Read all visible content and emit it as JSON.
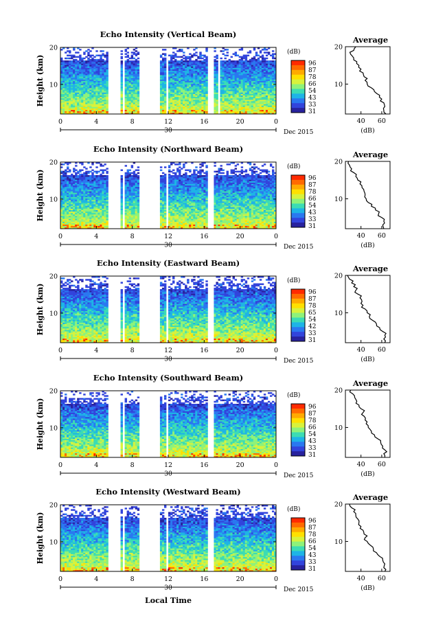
{
  "date_label": "Dec 2015",
  "xlabel": "Local Time",
  "ylabel": "Height (km)",
  "day_label": "30",
  "colorbar": {
    "unit": "(dB)",
    "tick_labels": [
      "96",
      "87",
      "78",
      "66",
      "54",
      "43",
      "33",
      "31"
    ],
    "colors": [
      "#ff2a00",
      "#ff6a00",
      "#ffaa00",
      "#ffe000",
      "#d8f23c",
      "#8ef27a",
      "#3cdcb4",
      "#1eb4e6",
      "#2a78f0",
      "#3244dc",
      "#28229e"
    ]
  },
  "profile": {
    "title": "Average",
    "xlabel": "(dB)"
  },
  "chart_data": [
    {
      "type": "heatmap",
      "title": "Echo Intensity (Vertical Beam)",
      "xlim": [
        0,
        24
      ],
      "ylim": [
        2,
        20
      ],
      "xticks": [
        "0",
        "4",
        "8",
        "12",
        "16",
        "20",
        "0"
      ],
      "yticks": [
        "20",
        "10"
      ],
      "cbar_ticks": [
        "96",
        "87",
        "78",
        "66",
        "54",
        "43",
        "33",
        "31"
      ],
      "data_gaps_hours": [
        [
          5.3,
          6.6
        ],
        [
          7.0,
          7.2
        ],
        [
          8.8,
          11.1
        ],
        [
          11.8,
          12.1
        ],
        [
          16.4,
          17.0
        ],
        [
          17.5,
          17.8
        ]
      ],
      "profile": {
        "xticks": [
          "40",
          "60"
        ],
        "yticks": [
          "20",
          "10"
        ],
        "height_km": [
          20,
          19,
          18,
          17,
          16,
          15,
          14,
          13,
          12,
          11,
          10,
          9,
          8,
          7,
          6,
          5,
          4,
          3,
          2
        ],
        "avg_db": [
          35,
          33,
          30,
          33,
          36,
          38,
          40,
          42,
          43,
          44,
          46,
          50,
          53,
          58,
          60,
          62,
          63,
          62,
          64
        ]
      }
    },
    {
      "type": "heatmap",
      "title": "Echo Intensity (Northward Beam)",
      "xlim": [
        0,
        24
      ],
      "ylim": [
        2,
        20
      ],
      "xticks": [
        "0",
        "4",
        "8",
        "12",
        "16",
        "20",
        "0"
      ],
      "yticks": [
        "20",
        "10"
      ],
      "cbar_ticks": [
        "96",
        "87",
        "78",
        "66",
        "54",
        "43",
        "33",
        "31"
      ],
      "data_gaps_hours": [
        [
          5.3,
          6.6
        ],
        [
          7.0,
          7.2
        ],
        [
          8.8,
          11.1
        ],
        [
          11.8,
          12.1
        ],
        [
          16.4,
          17.0
        ]
      ],
      "profile": {
        "xticks": [
          "40",
          "60"
        ],
        "yticks": [
          "20",
          "10"
        ],
        "height_km": [
          20,
          19,
          18,
          17,
          16,
          15,
          14,
          13,
          12,
          11,
          10,
          9,
          8,
          7,
          6,
          5,
          4,
          3,
          2
        ],
        "avg_db": [
          28,
          29,
          31,
          33,
          35,
          37,
          39,
          41,
          43,
          44,
          45,
          47,
          50,
          54,
          57,
          60,
          62,
          61,
          62
        ]
      }
    },
    {
      "type": "heatmap",
      "title": "Echo Intensity (Eastward Beam)",
      "xlim": [
        0,
        24
      ],
      "ylim": [
        2,
        20
      ],
      "xticks": [
        "0",
        "4",
        "8",
        "12",
        "16",
        "20",
        "0"
      ],
      "yticks": [
        "20",
        "10"
      ],
      "cbar_ticks": [
        "96",
        "87",
        "78",
        "65",
        "54",
        "42",
        "33",
        "31"
      ],
      "data_gaps_hours": [
        [
          5.3,
          6.6
        ],
        [
          7.0,
          7.2
        ],
        [
          8.8,
          11.1
        ],
        [
          11.8,
          12.1
        ],
        [
          16.4,
          17.0
        ]
      ],
      "profile": {
        "xticks": [
          "40",
          "60"
        ],
        "yticks": [
          "20",
          "10"
        ],
        "height_km": [
          20,
          19,
          18,
          17,
          16,
          15,
          14,
          13,
          12,
          11,
          10,
          9,
          8,
          7,
          6,
          5,
          4,
          3,
          2
        ],
        "avg_db": [
          27,
          29,
          31,
          33,
          35,
          37,
          39,
          41,
          42,
          44,
          46,
          48,
          51,
          55,
          58,
          61,
          63,
          62,
          63
        ]
      }
    },
    {
      "type": "heatmap",
      "title": "Echo Intensity (Southward Beam)",
      "xlim": [
        0,
        24
      ],
      "ylim": [
        2,
        20
      ],
      "xticks": [
        "0",
        "4",
        "8",
        "12",
        "16",
        "20",
        "0"
      ],
      "yticks": [
        "20",
        "10"
      ],
      "cbar_ticks": [
        "96",
        "87",
        "78",
        "66",
        "54",
        "43",
        "33",
        "31"
      ],
      "data_gaps_hours": [
        [
          5.3,
          6.6
        ],
        [
          7.0,
          7.2
        ],
        [
          8.8,
          11.1
        ],
        [
          11.8,
          12.1
        ],
        [
          16.4,
          17.0
        ]
      ],
      "profile": {
        "xticks": [
          "40",
          "60"
        ],
        "yticks": [
          "20",
          "10"
        ],
        "height_km": [
          20,
          19,
          18,
          17,
          16,
          15,
          14,
          13,
          12,
          11,
          10,
          9,
          8,
          7,
          6,
          5,
          4,
          3,
          2
        ],
        "avg_db": [
          30,
          32,
          34,
          36,
          38,
          40,
          42,
          43,
          44,
          45,
          47,
          50,
          53,
          56,
          59,
          61,
          63,
          62,
          63
        ]
      }
    },
    {
      "type": "heatmap",
      "title": "Echo Intensity (Westward Beam)",
      "xlim": [
        0,
        24
      ],
      "ylim": [
        2,
        20
      ],
      "xticks": [
        "0",
        "4",
        "8",
        "12",
        "16",
        "20",
        "0"
      ],
      "yticks": [
        "20",
        "10"
      ],
      "cbar_ticks": [
        "96",
        "87",
        "78",
        "66",
        "54",
        "43",
        "33",
        "31"
      ],
      "data_gaps_hours": [
        [
          5.3,
          6.6
        ],
        [
          7.0,
          7.2
        ],
        [
          8.8,
          11.1
        ],
        [
          11.8,
          12.1
        ],
        [
          16.4,
          17.0
        ]
      ],
      "profile": {
        "xticks": [
          "40",
          "60"
        ],
        "yticks": [
          "20",
          "10"
        ],
        "height_km": [
          20,
          19,
          18,
          17,
          16,
          15,
          14,
          13,
          12,
          11,
          10,
          9,
          8,
          7,
          6,
          5,
          4,
          3,
          2
        ],
        "avg_db": [
          29,
          31,
          33,
          35,
          37,
          38,
          40,
          42,
          43,
          44,
          46,
          49,
          52,
          55,
          58,
          61,
          63,
          62,
          63
        ]
      }
    }
  ]
}
